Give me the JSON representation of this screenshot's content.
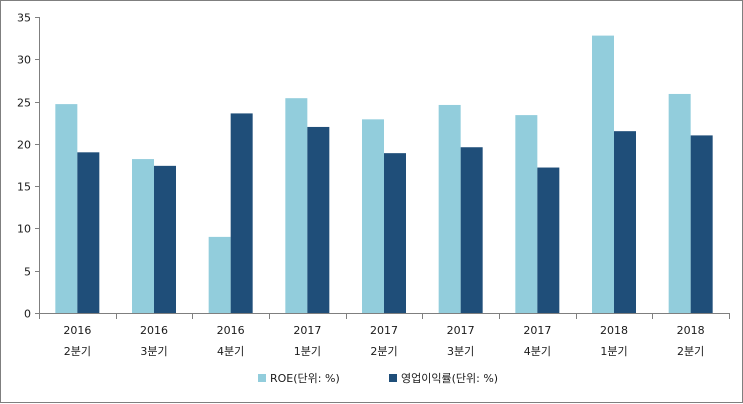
{
  "chart_data": {
    "type": "bar",
    "categories": [
      [
        "2016",
        "2분기"
      ],
      [
        "2016",
        "3분기"
      ],
      [
        "2016",
        "4분기"
      ],
      [
        "2017",
        "1분기"
      ],
      [
        "2017",
        "2분기"
      ],
      [
        "2017",
        "3분기"
      ],
      [
        "2017",
        "4분기"
      ],
      [
        "2018",
        "1분기"
      ],
      [
        "2018",
        "2분기"
      ]
    ],
    "series": [
      {
        "name": "ROE(단위: %)",
        "color": "#92cddc",
        "values": [
          24.7,
          18.2,
          9.0,
          25.4,
          22.9,
          24.6,
          23.4,
          32.8,
          25.9
        ]
      },
      {
        "name": "영업이익률(단위: %)",
        "color": "#1f4e79",
        "values": [
          19.0,
          17.4,
          23.6,
          22.0,
          18.9,
          19.6,
          17.2,
          21.5,
          21.0
        ]
      }
    ],
    "title": "",
    "xlabel": "",
    "ylabel": "",
    "ylim": [
      0,
      35
    ],
    "yticks": [
      0,
      5,
      10,
      15,
      20,
      25,
      30,
      35
    ],
    "grid": false,
    "legend_position": "bottom"
  }
}
